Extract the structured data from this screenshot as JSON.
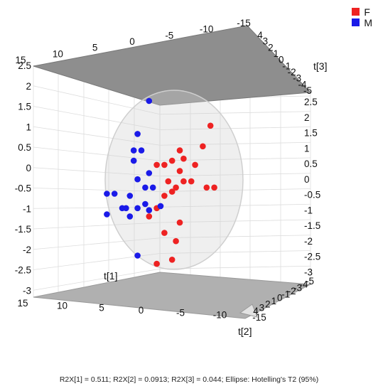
{
  "chart_data": {
    "type": "scatter",
    "title": "",
    "axes": {
      "t1": {
        "label": "t[1]",
        "ticks": [
          "15",
          "10",
          "5",
          "0",
          "-5",
          "-10",
          "-15"
        ]
      },
      "t2": {
        "label": "t[2]",
        "ticks": [
          "4",
          "3",
          "2",
          "1",
          "0",
          "-1",
          "-2",
          "-3",
          "-4",
          "-5"
        ]
      },
      "t3": {
        "label": "t[3]",
        "ticks": [
          "2.5",
          "2",
          "1.5",
          "1",
          "0.5",
          "0",
          "-0.5",
          "-1",
          "-1.5",
          "-2",
          "-2.5",
          "-3"
        ]
      }
    },
    "series": [
      {
        "name": "F",
        "color": "#ee2222",
        "points": [
          {
            "t1": -11.5,
            "t3": 1.4
          },
          {
            "t1": -10.5,
            "t3": 0.9
          },
          {
            "t1": -7.5,
            "t3": 0.8
          },
          {
            "t1": -8,
            "t3": 0.6
          },
          {
            "t1": -6.5,
            "t3": 0.55
          },
          {
            "t1": -9.5,
            "t3": 0.45
          },
          {
            "t1": -5.5,
            "t3": 0.45
          },
          {
            "t1": -4.5,
            "t3": 0.45
          },
          {
            "t1": -7.5,
            "t3": 0.3
          },
          {
            "t1": -6,
            "t3": 0.05
          },
          {
            "t1": -9,
            "t3": 0.05
          },
          {
            "t1": -8,
            "t3": 0.05
          },
          {
            "t1": -12,
            "t3": -0.1
          },
          {
            "t1": -11,
            "t3": -0.1
          },
          {
            "t1": -6.5,
            "t3": -0.2
          },
          {
            "t1": -7,
            "t3": -0.1
          },
          {
            "t1": -5.5,
            "t3": -0.3
          },
          {
            "t1": -4.5,
            "t3": -0.6
          },
          {
            "t1": -3.5,
            "t3": -0.8
          },
          {
            "t1": -7.5,
            "t3": -0.95
          },
          {
            "t1": -5.5,
            "t3": -1.2
          },
          {
            "t1": -7,
            "t3": -1.4
          },
          {
            "t1": -6.5,
            "t3": -1.85
          },
          {
            "t1": -4.5,
            "t3": -1.95
          }
        ]
      },
      {
        "name": "M",
        "color": "#1a1ae8",
        "points": [
          {
            "t1": -3.5,
            "t3": 2.0
          },
          {
            "t1": -2,
            "t3": 1.2
          },
          {
            "t1": -1.5,
            "t3": 0.8
          },
          {
            "t1": -2.5,
            "t3": 0.8
          },
          {
            "t1": -1.5,
            "t3": 0.55
          },
          {
            "t1": -3.5,
            "t3": 0.25
          },
          {
            "t1": -2,
            "t3": 0.1
          },
          {
            "t1": -3,
            "t3": -0.1
          },
          {
            "t1": -4,
            "t3": -0.1
          },
          {
            "t1": -1,
            "t3": -0.3
          },
          {
            "t1": -3,
            "t3": -0.5
          },
          {
            "t1": -5,
            "t3": -0.55
          },
          {
            "t1": -2,
            "t3": -0.6
          },
          {
            "t1": 0,
            "t3": -0.6
          },
          {
            "t1": -3.5,
            "t3": -0.65
          },
          {
            "t1": 2,
            "t3": -0.25
          },
          {
            "t1": 1,
            "t3": -0.25
          },
          {
            "t1": 2,
            "t3": -0.75
          },
          {
            "t1": -0.5,
            "t3": -0.6
          },
          {
            "t1": -1,
            "t3": -0.8
          },
          {
            "t1": -2,
            "t3": -1.75
          }
        ]
      }
    ],
    "legend": {
      "placement": "top-right",
      "items": [
        {
          "label": "F",
          "color": "#ee2222"
        },
        {
          "label": "M",
          "color": "#1a1ae8"
        }
      ]
    },
    "caption": "R2X[1] = 0.511; R2X[2] = 0.0913; R2X[3] = 0.044; Ellipse: Hotelling's T2 (95%)"
  }
}
